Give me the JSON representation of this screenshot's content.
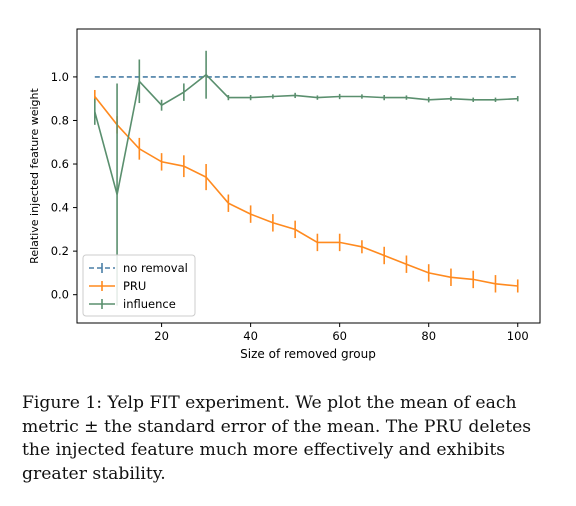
{
  "caption": "Figure 1: Yelp FIT experiment. We plot the mean of each metric ± the standard error of the mean. The PRU deletes the injected feature much more effectively and exhibits greater stability.",
  "chart_data": {
    "type": "line",
    "xlabel": "Size of removed group",
    "ylabel": "Relative injected feature weight",
    "xlim": [
      1,
      105
    ],
    "ylim": [
      -0.13,
      1.22
    ],
    "xticks": [
      20,
      40,
      60,
      80,
      100
    ],
    "yticks": [
      0.0,
      0.2,
      0.4,
      0.6,
      0.8,
      1.0
    ],
    "x_tick_labels": [
      "20",
      "40",
      "60",
      "80",
      "100"
    ],
    "y_tick_labels": [
      "0.0",
      "0.2",
      "0.4",
      "0.6",
      "0.8",
      "1.0"
    ],
    "grid": false,
    "legend_position": "lower-left",
    "series": [
      {
        "name": "no removal",
        "color": "#4a7fa6",
        "style": "dashed",
        "x": [
          5,
          100
        ],
        "y": [
          1.0,
          1.0
        ],
        "err": [
          0,
          0
        ]
      },
      {
        "name": "PRU",
        "color": "#ff8a1f",
        "style": "solid",
        "x": [
          5,
          10,
          15,
          20,
          25,
          30,
          35,
          40,
          45,
          50,
          55,
          60,
          65,
          70,
          75,
          80,
          85,
          90,
          95,
          100
        ],
        "y": [
          0.91,
          0.78,
          0.67,
          0.61,
          0.59,
          0.54,
          0.42,
          0.37,
          0.33,
          0.3,
          0.24,
          0.24,
          0.22,
          0.18,
          0.14,
          0.1,
          0.08,
          0.07,
          0.05,
          0.04
        ],
        "err": [
          0.03,
          0.04,
          0.05,
          0.04,
          0.05,
          0.06,
          0.04,
          0.04,
          0.04,
          0.04,
          0.04,
          0.04,
          0.03,
          0.04,
          0.04,
          0.04,
          0.04,
          0.04,
          0.04,
          0.03
        ]
      },
      {
        "name": "influence",
        "color": "#5a8f6e",
        "style": "solid",
        "x": [
          5,
          10,
          15,
          20,
          25,
          30,
          35,
          40,
          45,
          50,
          55,
          60,
          65,
          70,
          75,
          80,
          85,
          90,
          95,
          100
        ],
        "y": [
          0.84,
          0.46,
          0.98,
          0.87,
          0.93,
          1.01,
          0.905,
          0.905,
          0.91,
          0.915,
          0.905,
          0.91,
          0.91,
          0.905,
          0.905,
          0.895,
          0.9,
          0.895,
          0.895,
          0.9
        ],
        "err": [
          0.06,
          0.51,
          0.1,
          0.025,
          0.04,
          0.11,
          0.012,
          0.012,
          0.01,
          0.012,
          0.01,
          0.012,
          0.01,
          0.012,
          0.01,
          0.012,
          0.01,
          0.01,
          0.01,
          0.012
        ]
      }
    ]
  }
}
